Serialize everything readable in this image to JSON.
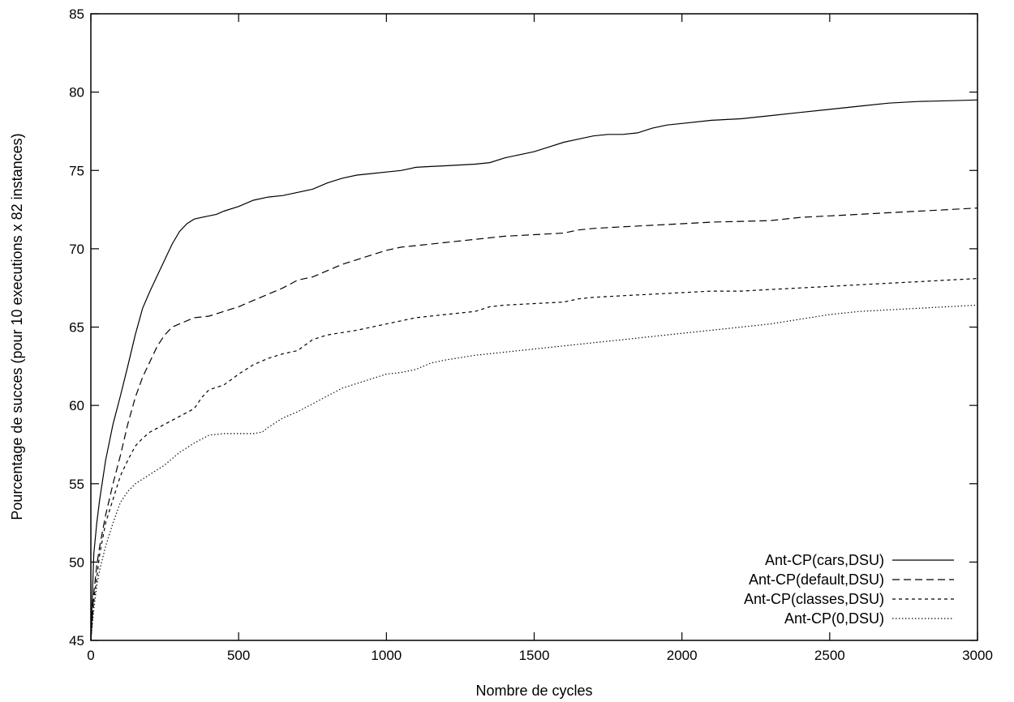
{
  "chart_data": {
    "type": "line",
    "title": "",
    "xlabel": "Nombre de cycles",
    "ylabel": "Pourcentage de succes (pour 10 executions x 82 instances)",
    "xlim": [
      0,
      3000
    ],
    "ylim": [
      45,
      85
    ],
    "xticks": [
      0,
      500,
      1000,
      1500,
      2000,
      2500,
      3000
    ],
    "yticks": [
      45,
      50,
      55,
      60,
      65,
      70,
      75,
      80,
      85
    ],
    "grid": false,
    "legend_position": "bottom-right",
    "series": [
      {
        "name": "Ant-CP(cars,DSU)",
        "dash": "solid",
        "x": [
          0,
          10,
          20,
          30,
          50,
          75,
          100,
          125,
          150,
          175,
          200,
          225,
          250,
          275,
          300,
          325,
          350,
          375,
          400,
          425,
          450,
          500,
          550,
          600,
          650,
          700,
          750,
          800,
          850,
          900,
          950,
          1000,
          1050,
          1100,
          1150,
          1200,
          1300,
          1350,
          1400,
          1450,
          1500,
          1550,
          1600,
          1650,
          1700,
          1750,
          1800,
          1850,
          1900,
          1950,
          2000,
          2100,
          2200,
          2300,
          2400,
          2500,
          2600,
          2700,
          2800,
          2900,
          3000
        ],
        "y": [
          45,
          50.5,
          52.5,
          54,
          56.5,
          58.8,
          60.6,
          62.5,
          64.5,
          66.2,
          67.3,
          68.3,
          69.3,
          70.3,
          71.1,
          71.6,
          71.9,
          72.0,
          72.1,
          72.2,
          72.4,
          72.7,
          73.1,
          73.3,
          73.4,
          73.6,
          73.8,
          74.2,
          74.5,
          74.7,
          74.8,
          74.9,
          75.0,
          75.2,
          75.25,
          75.3,
          75.4,
          75.5,
          75.8,
          76.0,
          76.2,
          76.5,
          76.8,
          77.0,
          77.2,
          77.3,
          77.3,
          77.4,
          77.7,
          77.9,
          78.0,
          78.2,
          78.3,
          78.5,
          78.7,
          78.9,
          79.1,
          79.3,
          79.4,
          79.45,
          79.5
        ]
      },
      {
        "name": "Ant-CP(default,DSU)",
        "dash": "long",
        "x": [
          0,
          10,
          20,
          30,
          50,
          75,
          100,
          125,
          150,
          175,
          200,
          225,
          250,
          275,
          300,
          350,
          400,
          450,
          500,
          550,
          600,
          650,
          700,
          750,
          800,
          850,
          900,
          950,
          1000,
          1050,
          1100,
          1150,
          1200,
          1300,
          1400,
          1500,
          1600,
          1650,
          1700,
          1800,
          1900,
          2000,
          2100,
          2200,
          2300,
          2400,
          2500,
          2600,
          2700,
          2800,
          2900,
          3000
        ],
        "y": [
          45,
          48,
          49.8,
          51,
          53,
          55,
          56.8,
          58.8,
          60.5,
          61.8,
          62.8,
          63.8,
          64.5,
          65.0,
          65.2,
          65.6,
          65.7,
          66.0,
          66.3,
          66.7,
          67.1,
          67.5,
          68.0,
          68.2,
          68.6,
          69.0,
          69.3,
          69.6,
          69.9,
          70.1,
          70.2,
          70.3,
          70.4,
          70.6,
          70.8,
          70.9,
          71.0,
          71.2,
          71.3,
          71.4,
          71.5,
          71.6,
          71.7,
          71.75,
          71.8,
          72.0,
          72.1,
          72.2,
          72.3,
          72.4,
          72.5,
          72.6
        ]
      },
      {
        "name": "Ant-CP(classes,DSU)",
        "dash": "medium",
        "x": [
          0,
          10,
          20,
          30,
          50,
          75,
          100,
          125,
          150,
          175,
          200,
          250,
          300,
          350,
          375,
          400,
          450,
          500,
          550,
          600,
          650,
          700,
          750,
          800,
          900,
          950,
          1000,
          1050,
          1100,
          1200,
          1300,
          1350,
          1400,
          1500,
          1600,
          1650,
          1700,
          1800,
          1900,
          2000,
          2100,
          2200,
          2300,
          2400,
          2500,
          2600,
          2700,
          2800,
          2900,
          3000
        ],
        "y": [
          45,
          47.5,
          49,
          50.5,
          52.5,
          54,
          55.5,
          56.5,
          57.4,
          57.9,
          58.3,
          58.8,
          59.3,
          59.8,
          60.5,
          61.0,
          61.3,
          62.0,
          62.6,
          63.0,
          63.3,
          63.5,
          64.2,
          64.5,
          64.8,
          65.0,
          65.2,
          65.4,
          65.6,
          65.8,
          66.0,
          66.3,
          66.4,
          66.5,
          66.6,
          66.8,
          66.9,
          67.0,
          67.1,
          67.2,
          67.3,
          67.3,
          67.4,
          67.5,
          67.6,
          67.7,
          67.8,
          67.9,
          68.0,
          68.1
        ]
      },
      {
        "name": "Ant-CP(0,DSU)",
        "dash": "dotted",
        "x": [
          0,
          10,
          20,
          30,
          50,
          75,
          100,
          125,
          150,
          175,
          200,
          250,
          300,
          350,
          400,
          450,
          500,
          550,
          580,
          600,
          650,
          700,
          750,
          800,
          850,
          900,
          950,
          1000,
          1050,
          1100,
          1150,
          1200,
          1300,
          1400,
          1500,
          1600,
          1700,
          1800,
          1900,
          2000,
          2100,
          2200,
          2300,
          2400,
          2500,
          2600,
          2700,
          2800,
          2900,
          3000
        ],
        "y": [
          45,
          47,
          48.5,
          49.5,
          51,
          52.5,
          53.8,
          54.5,
          55.0,
          55.3,
          55.6,
          56.2,
          57.0,
          57.6,
          58.1,
          58.2,
          58.2,
          58.2,
          58.3,
          58.6,
          59.2,
          59.6,
          60.1,
          60.6,
          61.1,
          61.4,
          61.7,
          62.0,
          62.1,
          62.3,
          62.7,
          62.9,
          63.2,
          63.4,
          63.6,
          63.8,
          64.0,
          64.2,
          64.4,
          64.6,
          64.8,
          65.0,
          65.2,
          65.5,
          65.8,
          66.0,
          66.1,
          66.2,
          66.3,
          66.4
        ]
      }
    ]
  }
}
